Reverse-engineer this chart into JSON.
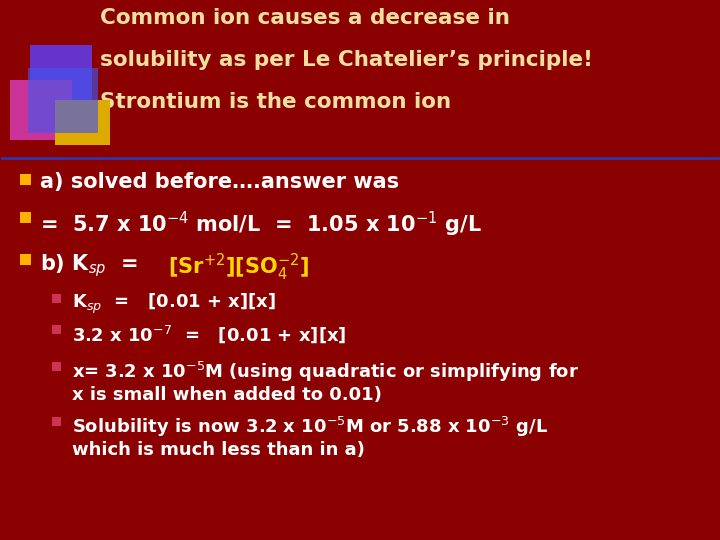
{
  "bg_color": "#8B0000",
  "title_color": "#F0E0A0",
  "title_lines": [
    "Common ion causes a decrease in",
    "solubility as per Le Chatelier’s principle!",
    "Strontium is the common ion"
  ],
  "separator_color": "#3333AA",
  "bullet_color": "#FFB300",
  "text_white": "#FFFFFF",
  "yellow_text_color": "#FFD700",
  "sub_bullet_color": "#CC3355",
  "rect1_color": "#6633CC",
  "rect2_color": "#CC3399",
  "rect3_color": "#DDAA00",
  "rect4_color": "#4455EE"
}
